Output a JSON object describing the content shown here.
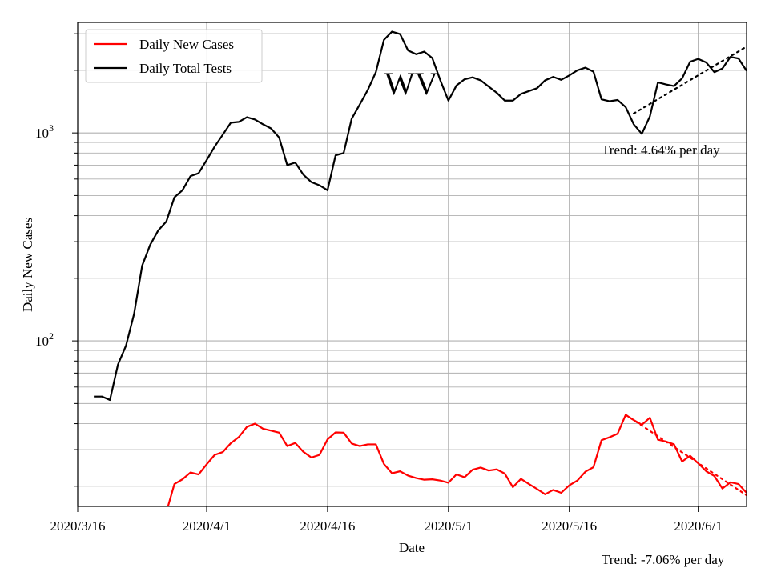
{
  "chart_data": {
    "type": "line",
    "xlabel": "Date",
    "ylabel": "Daily New Cases",
    "y_scale": "log",
    "ylim": [
      16,
      3400
    ],
    "xlim": [
      "2020-03-16",
      "2020-06-07"
    ],
    "x_ticks": [
      {
        "date": "2020-03-16",
        "label": "2020/3/16"
      },
      {
        "date": "2020-04-01",
        "label": "2020/4/1"
      },
      {
        "date": "2020-04-16",
        "label": "2020/4/16"
      },
      {
        "date": "2020-05-01",
        "label": "2020/5/1"
      },
      {
        "date": "2020-05-16",
        "label": "2020/5/16"
      },
      {
        "date": "2020-06-01",
        "label": "2020/6/1"
      }
    ],
    "y_ticks": [
      {
        "value": 100,
        "base": "10",
        "exp": "2"
      },
      {
        "value": 1000,
        "base": "10",
        "exp": "3"
      }
    ],
    "grid": true,
    "legend": "upper-left",
    "annotation": "WV",
    "series": [
      {
        "name": "Daily New Cases",
        "color": "#ff0000",
        "points": [
          [
            "2020-03-27",
            15
          ],
          [
            "2020-03-28",
            20.5
          ],
          [
            "2020-03-29",
            21.6
          ],
          [
            "2020-03-30",
            23.3
          ],
          [
            "2020-03-31",
            22.8
          ],
          [
            "2020-04-01",
            25.5
          ],
          [
            "2020-04-02",
            28.3
          ],
          [
            "2020-04-03",
            29.2
          ],
          [
            "2020-04-04",
            32.2
          ],
          [
            "2020-04-05",
            34.5
          ],
          [
            "2020-04-06",
            38.6
          ],
          [
            "2020-04-07",
            40.0
          ],
          [
            "2020-04-08",
            37.8
          ],
          [
            "2020-04-09",
            37.0
          ],
          [
            "2020-04-10",
            36.2
          ],
          [
            "2020-04-11",
            31.2
          ],
          [
            "2020-04-12",
            32.3
          ],
          [
            "2020-04-13",
            29.3
          ],
          [
            "2020-04-14",
            27.5
          ],
          [
            "2020-04-15",
            28.3
          ],
          [
            "2020-04-16",
            33.6
          ],
          [
            "2020-04-17",
            36.3
          ],
          [
            "2020-04-18",
            36.2
          ],
          [
            "2020-04-19",
            32.1
          ],
          [
            "2020-04-20",
            31.2
          ],
          [
            "2020-04-21",
            31.8
          ],
          [
            "2020-04-22",
            31.8
          ],
          [
            "2020-04-23",
            25.6
          ],
          [
            "2020-04-24",
            23.1
          ],
          [
            "2020-04-25",
            23.6
          ],
          [
            "2020-04-26",
            22.5
          ],
          [
            "2020-04-27",
            21.9
          ],
          [
            "2020-04-28",
            21.5
          ],
          [
            "2020-04-29",
            21.6
          ],
          [
            "2020-04-30",
            21.3
          ],
          [
            "2020-05-01",
            20.8
          ],
          [
            "2020-05-02",
            22.8
          ],
          [
            "2020-05-03",
            22.1
          ],
          [
            "2020-05-04",
            24.0
          ],
          [
            "2020-05-05",
            24.6
          ],
          [
            "2020-05-06",
            23.8
          ],
          [
            "2020-05-07",
            24.1
          ],
          [
            "2020-05-08",
            23.0
          ],
          [
            "2020-05-09",
            19.8
          ],
          [
            "2020-05-10",
            21.7
          ],
          [
            "2020-05-11",
            20.5
          ],
          [
            "2020-05-12",
            19.4
          ],
          [
            "2020-05-13",
            18.3
          ],
          [
            "2020-05-14",
            19.2
          ],
          [
            "2020-05-15",
            18.6
          ],
          [
            "2020-05-16",
            20.2
          ],
          [
            "2020-05-17",
            21.3
          ],
          [
            "2020-05-18",
            23.5
          ],
          [
            "2020-05-19",
            24.7
          ],
          [
            "2020-05-20",
            33.3
          ],
          [
            "2020-05-21",
            34.4
          ],
          [
            "2020-05-22",
            35.8
          ],
          [
            "2020-05-23",
            44.1
          ],
          [
            "2020-05-24",
            41.6
          ],
          [
            "2020-05-25",
            39.5
          ],
          [
            "2020-05-26",
            42.7
          ],
          [
            "2020-05-27",
            33.5
          ],
          [
            "2020-05-28",
            32.8
          ],
          [
            "2020-05-29",
            31.8
          ],
          [
            "2020-05-30",
            26.3
          ],
          [
            "2020-05-31",
            28.0
          ],
          [
            "2020-06-01",
            25.8
          ],
          [
            "2020-06-02",
            23.6
          ],
          [
            "2020-06-03",
            22.4
          ],
          [
            "2020-06-04",
            19.5
          ],
          [
            "2020-06-05",
            20.9
          ],
          [
            "2020-06-06",
            20.5
          ],
          [
            "2020-06-07",
            18.6
          ]
        ],
        "trend": {
          "text": "Trend: -7.06% per day",
          "points": [
            [
              "2020-05-23",
              44.1
            ],
            [
              "2020-06-07",
              18.1
            ]
          ]
        }
      },
      {
        "name": "Daily Total Tests",
        "color": "#000000",
        "points": [
          [
            "2020-03-18",
            54
          ],
          [
            "2020-03-19",
            54
          ],
          [
            "2020-03-20",
            52
          ],
          [
            "2020-03-21",
            77
          ],
          [
            "2020-03-22",
            95
          ],
          [
            "2020-03-23",
            135
          ],
          [
            "2020-03-24",
            230
          ],
          [
            "2020-03-25",
            290
          ],
          [
            "2020-03-26",
            340
          ],
          [
            "2020-03-27",
            375
          ],
          [
            "2020-03-28",
            490
          ],
          [
            "2020-03-29",
            530
          ],
          [
            "2020-03-30",
            620
          ],
          [
            "2020-03-31",
            640
          ],
          [
            "2020-04-01",
            740
          ],
          [
            "2020-04-02",
            860
          ],
          [
            "2020-04-03",
            980
          ],
          [
            "2020-04-04",
            1120
          ],
          [
            "2020-04-05",
            1130
          ],
          [
            "2020-04-06",
            1190
          ],
          [
            "2020-04-07",
            1160
          ],
          [
            "2020-04-08",
            1100
          ],
          [
            "2020-04-09",
            1050
          ],
          [
            "2020-04-10",
            950
          ],
          [
            "2020-04-11",
            700
          ],
          [
            "2020-04-12",
            720
          ],
          [
            "2020-04-13",
            630
          ],
          [
            "2020-04-14",
            580
          ],
          [
            "2020-04-15",
            560
          ],
          [
            "2020-04-16",
            530
          ],
          [
            "2020-04-17",
            780
          ],
          [
            "2020-04-18",
            800
          ],
          [
            "2020-04-19",
            1170
          ],
          [
            "2020-04-20",
            1370
          ],
          [
            "2020-04-21",
            1610
          ],
          [
            "2020-04-22",
            1960
          ],
          [
            "2020-04-23",
            2800
          ],
          [
            "2020-04-24",
            3070
          ],
          [
            "2020-04-25",
            2990
          ],
          [
            "2020-04-26",
            2490
          ],
          [
            "2020-04-27",
            2390
          ],
          [
            "2020-04-28",
            2460
          ],
          [
            "2020-04-29",
            2290
          ],
          [
            "2020-04-30",
            1790
          ],
          [
            "2020-05-01",
            1430
          ],
          [
            "2020-05-02",
            1690
          ],
          [
            "2020-05-03",
            1810
          ],
          [
            "2020-05-04",
            1850
          ],
          [
            "2020-05-05",
            1790
          ],
          [
            "2020-05-06",
            1670
          ],
          [
            "2020-05-07",
            1560
          ],
          [
            "2020-05-08",
            1430
          ],
          [
            "2020-05-09",
            1430
          ],
          [
            "2020-05-10",
            1540
          ],
          [
            "2020-05-11",
            1590
          ],
          [
            "2020-05-12",
            1640
          ],
          [
            "2020-05-13",
            1790
          ],
          [
            "2020-05-14",
            1860
          ],
          [
            "2020-05-15",
            1800
          ],
          [
            "2020-05-16",
            1890
          ],
          [
            "2020-05-17",
            2000
          ],
          [
            "2020-05-18",
            2060
          ],
          [
            "2020-05-19",
            1970
          ],
          [
            "2020-05-20",
            1450
          ],
          [
            "2020-05-21",
            1420
          ],
          [
            "2020-05-22",
            1440
          ],
          [
            "2020-05-23",
            1330
          ],
          [
            "2020-05-24",
            1100
          ],
          [
            "2020-05-25",
            990
          ],
          [
            "2020-05-26",
            1200
          ],
          [
            "2020-05-27",
            1750
          ],
          [
            "2020-05-28",
            1710
          ],
          [
            "2020-05-29",
            1680
          ],
          [
            "2020-05-30",
            1830
          ],
          [
            "2020-05-31",
            2200
          ],
          [
            "2020-06-01",
            2270
          ],
          [
            "2020-06-02",
            2180
          ],
          [
            "2020-06-03",
            1960
          ],
          [
            "2020-06-04",
            2040
          ],
          [
            "2020-06-05",
            2320
          ],
          [
            "2020-06-06",
            2280
          ],
          [
            "2020-06-07",
            1990
          ]
        ],
        "trend": {
          "text": "Trend: 4.64% per day",
          "points": [
            [
              "2020-05-24",
              1240
            ],
            [
              "2020-06-07",
              2600
            ]
          ]
        }
      }
    ]
  }
}
